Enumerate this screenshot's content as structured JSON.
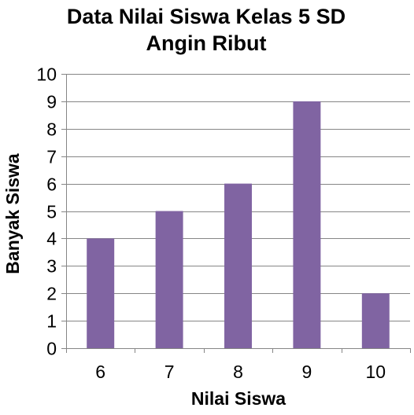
{
  "chart_data": {
    "type": "bar",
    "title_lines": [
      "Data Nilai Siswa Kelas 5 SD",
      "Angin Ribut"
    ],
    "xlabel": "Nilai Siswa",
    "ylabel": "Banyak Siswa",
    "categories": [
      "6",
      "7",
      "8",
      "9",
      "10"
    ],
    "values": [
      4,
      5,
      6,
      9,
      2
    ],
    "ylim": [
      0,
      10
    ],
    "yticks": [
      "0",
      "1",
      "2",
      "3",
      "4",
      "5",
      "6",
      "7",
      "8",
      "9",
      "10"
    ],
    "grid": true,
    "legend": "none",
    "colors": {
      "bar": "#8064a2",
      "grid": "#868686",
      "axis": "#868686"
    }
  }
}
